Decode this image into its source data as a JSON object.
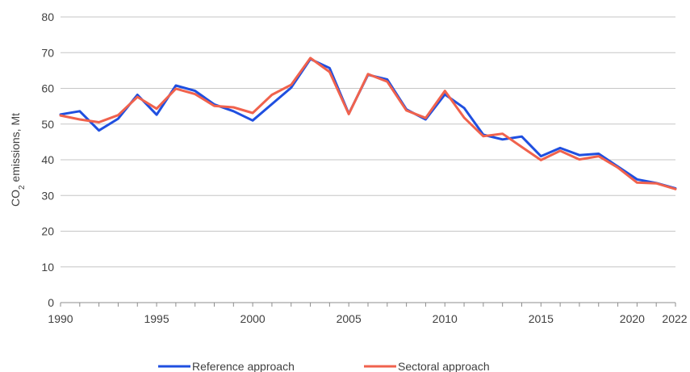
{
  "chart_data": {
    "type": "line",
    "ylabel_main": "CO",
    "ylabel_sub": "2",
    "ylabel_rest": " emissions, Mt",
    "ylim": [
      0,
      80
    ],
    "y_ticks": [
      0,
      10,
      20,
      30,
      40,
      50,
      60,
      70,
      80
    ],
    "x_ticks": [
      1990,
      1995,
      2000,
      2005,
      2010,
      2015,
      2020,
      2022
    ],
    "xlim": [
      1990,
      2022
    ],
    "grid": "horizontal",
    "legend_position": "bottom",
    "x": [
      1990,
      1991,
      1992,
      1993,
      1994,
      1995,
      1996,
      1997,
      1998,
      1999,
      2000,
      2001,
      2002,
      2003,
      2004,
      2005,
      2006,
      2007,
      2008,
      2009,
      2010,
      2011,
      2012,
      2013,
      2014,
      2015,
      2016,
      2017,
      2018,
      2019,
      2020,
      2021,
      2022
    ],
    "series": [
      {
        "name": "Reference approach",
        "color": "#1f4fe0",
        "values": [
          52.7,
          53.6,
          48.2,
          51.5,
          58.2,
          52.6,
          60.8,
          59.3,
          55.5,
          53.6,
          51.0,
          55.6,
          60.2,
          68.2,
          65.7,
          52.9,
          63.8,
          62.5,
          54.1,
          51.3,
          58.3,
          54.5,
          47.0,
          45.7,
          46.5,
          41.0,
          43.3,
          41.3,
          41.7,
          38.1,
          34.5,
          33.5,
          32.0
        ]
      },
      {
        "name": "Sectoral approach",
        "color": "#f0624d",
        "values": [
          52.4,
          51.3,
          50.5,
          52.5,
          57.6,
          54.3,
          59.9,
          58.4,
          55.1,
          54.7,
          53.1,
          58.2,
          61.0,
          68.5,
          64.6,
          52.8,
          64.0,
          61.9,
          53.8,
          51.7,
          59.3,
          51.8,
          46.6,
          47.3,
          43.6,
          39.9,
          42.5,
          40.1,
          41.0,
          37.8,
          33.6,
          33.4,
          31.8
        ]
      }
    ]
  }
}
